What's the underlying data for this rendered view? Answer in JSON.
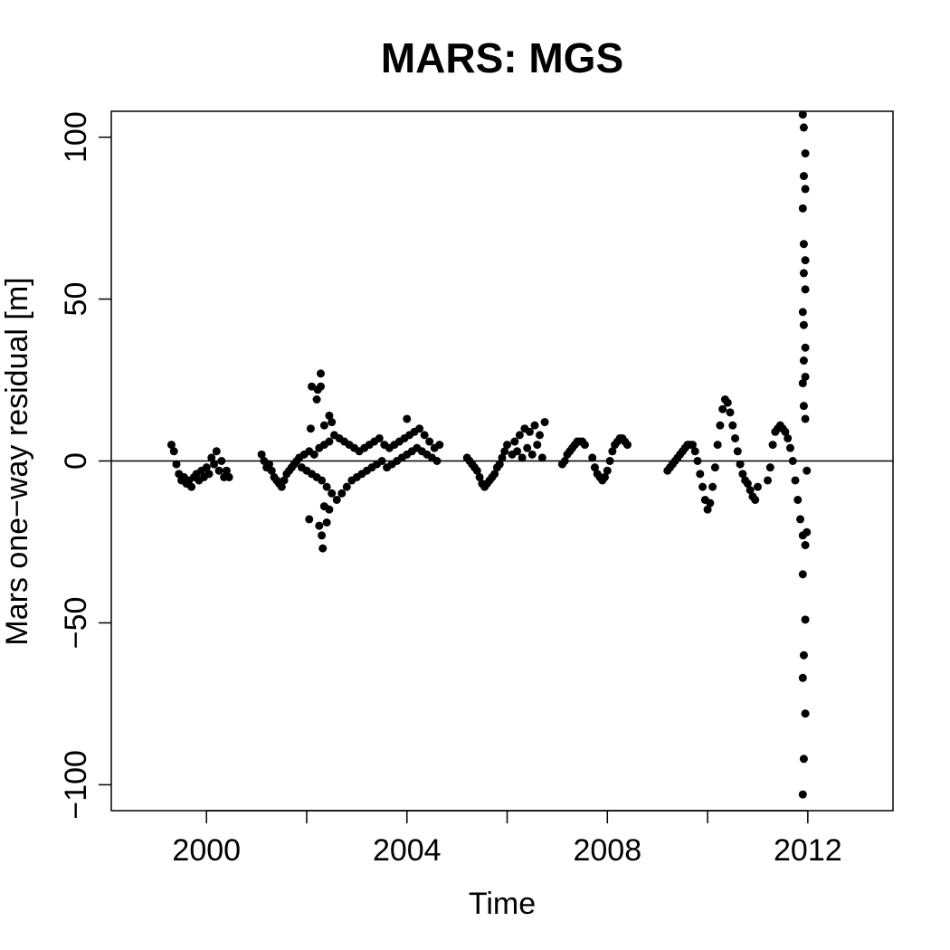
{
  "chart_data": {
    "type": "scatter",
    "title": "MARS: MGS",
    "xlabel": "Time",
    "ylabel": "Mars one−way residual [m]",
    "xlim": [
      1998.1,
      2013.7
    ],
    "ylim": [
      -108,
      108
    ],
    "xticks": [
      2000,
      2002,
      2004,
      2006,
      2008,
      2010,
      2012
    ],
    "xtick_labels": [
      "2000",
      "",
      "2004",
      "",
      "2008",
      "",
      "2012"
    ],
    "yticks": [
      -100,
      -50,
      0,
      50,
      100
    ],
    "ytick_labels": [
      "−100",
      "−50",
      "0",
      "50",
      "100"
    ],
    "reference_line_y": 0,
    "grid": false,
    "marker_color": "#000000",
    "series": [
      {
        "points": [
          [
            1999.3,
            5
          ],
          [
            1999.35,
            3
          ],
          [
            1999.4,
            -1
          ],
          [
            1999.45,
            -4
          ],
          [
            1999.5,
            -6
          ],
          [
            1999.55,
            -5
          ],
          [
            1999.6,
            -7
          ],
          [
            1999.65,
            -6
          ],
          [
            1999.7,
            -8
          ],
          [
            1999.75,
            -5
          ],
          [
            1999.8,
            -4
          ],
          [
            1999.85,
            -6
          ],
          [
            1999.9,
            -3
          ],
          [
            1999.95,
            -5
          ],
          [
            2000.0,
            -2
          ],
          [
            2000.05,
            -4
          ],
          [
            2000.1,
            1
          ],
          [
            2000.15,
            -1
          ],
          [
            2000.2,
            3
          ],
          [
            2000.25,
            -3
          ],
          [
            2000.3,
            0
          ],
          [
            2000.35,
            -5
          ],
          [
            2000.4,
            -3
          ],
          [
            2000.45,
            -5
          ],
          [
            2001.1,
            2
          ],
          [
            2001.15,
            0
          ],
          [
            2001.2,
            -2
          ],
          [
            2001.25,
            -1
          ],
          [
            2001.3,
            -3
          ],
          [
            2001.35,
            -5
          ],
          [
            2001.4,
            -6
          ],
          [
            2001.45,
            -7
          ],
          [
            2001.5,
            -8
          ],
          [
            2001.55,
            -6
          ],
          [
            2001.6,
            -4
          ],
          [
            2001.65,
            -3
          ],
          [
            2001.7,
            -2
          ],
          [
            2001.75,
            -1
          ],
          [
            2001.8,
            0
          ],
          [
            2001.85,
            1
          ],
          [
            2001.9,
            -2
          ],
          [
            2001.95,
            2
          ],
          [
            2002.0,
            -3
          ],
          [
            2002.05,
            3
          ],
          [
            2002.1,
            -4
          ],
          [
            2002.15,
            2
          ],
          [
            2002.2,
            -5
          ],
          [
            2002.25,
            4
          ],
          [
            2002.3,
            -6
          ],
          [
            2002.35,
            5
          ],
          [
            2002.4,
            -8
          ],
          [
            2002.45,
            6
          ],
          [
            2002.5,
            -10
          ],
          [
            2002.55,
            8
          ],
          [
            2002.6,
            -12
          ],
          [
            2002.65,
            7
          ],
          [
            2002.7,
            -10
          ],
          [
            2002.75,
            6
          ],
          [
            2002.8,
            -8
          ],
          [
            2002.85,
            5
          ],
          [
            2002.9,
            -6
          ],
          [
            2002.95,
            4
          ],
          [
            2003.0,
            -5
          ],
          [
            2003.05,
            3
          ],
          [
            2003.1,
            -4
          ],
          [
            2003.15,
            4
          ],
          [
            2003.2,
            -3
          ],
          [
            2003.25,
            5
          ],
          [
            2003.3,
            -2
          ],
          [
            2003.35,
            6
          ],
          [
            2003.4,
            -1
          ],
          [
            2003.45,
            7
          ],
          [
            2003.5,
            0
          ],
          [
            2003.55,
            5
          ],
          [
            2003.6,
            -2
          ],
          [
            2003.65,
            4
          ],
          [
            2003.7,
            -1
          ],
          [
            2003.75,
            5
          ],
          [
            2003.8,
            0
          ],
          [
            2003.85,
            6
          ],
          [
            2003.9,
            1
          ],
          [
            2003.95,
            7
          ],
          [
            2004.0,
            2
          ],
          [
            2004.05,
            8
          ],
          [
            2004.1,
            3
          ],
          [
            2004.15,
            9
          ],
          [
            2004.2,
            4
          ],
          [
            2004.25,
            10
          ],
          [
            2004.3,
            3
          ],
          [
            2004.35,
            8
          ],
          [
            2004.4,
            2
          ],
          [
            2004.45,
            6
          ],
          [
            2004.5,
            1
          ],
          [
            2004.55,
            4
          ],
          [
            2004.6,
            0
          ],
          [
            2004.65,
            5
          ],
          [
            2002.1,
            23
          ],
          [
            2002.2,
            19
          ],
          [
            2002.22,
            22
          ],
          [
            2002.28,
            23
          ],
          [
            2002.28,
            27
          ],
          [
            2002.08,
            10
          ],
          [
            2002.35,
            11
          ],
          [
            2002.45,
            14
          ],
          [
            2002.5,
            12
          ],
          [
            2004.0,
            13
          ],
          [
            2002.05,
            -18
          ],
          [
            2002.25,
            -20
          ],
          [
            2002.3,
            -23
          ],
          [
            2002.32,
            -27
          ],
          [
            2002.4,
            -19
          ],
          [
            2002.45,
            -15
          ],
          [
            2002.35,
            -14
          ],
          [
            2005.2,
            1
          ],
          [
            2005.25,
            0
          ],
          [
            2005.3,
            -1
          ],
          [
            2005.35,
            -2
          ],
          [
            2005.4,
            -3
          ],
          [
            2005.45,
            -5
          ],
          [
            2005.5,
            -7
          ],
          [
            2005.55,
            -8
          ],
          [
            2005.6,
            -7
          ],
          [
            2005.65,
            -6
          ],
          [
            2005.7,
            -5
          ],
          [
            2005.75,
            -4
          ],
          [
            2005.8,
            -2
          ],
          [
            2005.85,
            -1
          ],
          [
            2005.9,
            1
          ],
          [
            2005.95,
            3
          ],
          [
            2006.0,
            5
          ],
          [
            2006.1,
            2
          ],
          [
            2006.15,
            6
          ],
          [
            2006.2,
            3
          ],
          [
            2006.25,
            8
          ],
          [
            2006.3,
            1
          ],
          [
            2006.35,
            10
          ],
          [
            2006.4,
            4
          ],
          [
            2006.45,
            9
          ],
          [
            2006.5,
            2
          ],
          [
            2006.55,
            11
          ],
          [
            2006.6,
            5
          ],
          [
            2006.65,
            8
          ],
          [
            2006.7,
            1
          ],
          [
            2006.75,
            12
          ],
          [
            2007.1,
            -1
          ],
          [
            2007.15,
            0
          ],
          [
            2007.2,
            2
          ],
          [
            2007.25,
            3
          ],
          [
            2007.3,
            4
          ],
          [
            2007.35,
            5
          ],
          [
            2007.4,
            6
          ],
          [
            2007.45,
            6
          ],
          [
            2007.5,
            6
          ],
          [
            2007.55,
            5
          ],
          [
            2007.7,
            1
          ],
          [
            2007.75,
            -2
          ],
          [
            2007.8,
            -4
          ],
          [
            2007.85,
            -5
          ],
          [
            2007.9,
            -6
          ],
          [
            2007.95,
            -5
          ],
          [
            2008.0,
            -3
          ],
          [
            2008.05,
            0
          ],
          [
            2008.1,
            3
          ],
          [
            2008.15,
            5
          ],
          [
            2008.2,
            6
          ],
          [
            2008.25,
            7
          ],
          [
            2008.3,
            7
          ],
          [
            2008.35,
            6
          ],
          [
            2008.4,
            5
          ],
          [
            2009.2,
            -3
          ],
          [
            2009.25,
            -2
          ],
          [
            2009.3,
            -1
          ],
          [
            2009.35,
            0
          ],
          [
            2009.4,
            1
          ],
          [
            2009.45,
            2
          ],
          [
            2009.5,
            3
          ],
          [
            2009.55,
            4
          ],
          [
            2009.6,
            5
          ],
          [
            2009.65,
            5
          ],
          [
            2009.7,
            5
          ],
          [
            2009.75,
            3
          ],
          [
            2009.8,
            0
          ],
          [
            2009.85,
            -4
          ],
          [
            2009.9,
            -8
          ],
          [
            2009.95,
            -12
          ],
          [
            2010.0,
            -15
          ],
          [
            2010.05,
            -13
          ],
          [
            2010.1,
            -8
          ],
          [
            2010.15,
            -2
          ],
          [
            2010.2,
            5
          ],
          [
            2010.25,
            11
          ],
          [
            2010.3,
            16
          ],
          [
            2010.35,
            19
          ],
          [
            2010.4,
            18
          ],
          [
            2010.45,
            15
          ],
          [
            2010.5,
            11
          ],
          [
            2010.55,
            7
          ],
          [
            2010.6,
            3
          ],
          [
            2010.65,
            -1
          ],
          [
            2010.7,
            -4
          ],
          [
            2010.75,
            -6
          ],
          [
            2010.8,
            -7
          ],
          [
            2010.85,
            -9
          ],
          [
            2010.9,
            -11
          ],
          [
            2010.95,
            -12
          ],
          [
            2011.0,
            -8
          ],
          [
            2011.2,
            -6
          ],
          [
            2011.25,
            -2
          ],
          [
            2011.3,
            5
          ],
          [
            2011.35,
            9
          ],
          [
            2011.4,
            10
          ],
          [
            2011.45,
            11
          ],
          [
            2011.5,
            10
          ],
          [
            2011.55,
            9
          ],
          [
            2011.6,
            7
          ],
          [
            2011.65,
            4
          ],
          [
            2011.7,
            0
          ],
          [
            2011.75,
            -6
          ],
          [
            2011.8,
            -12
          ],
          [
            2011.85,
            -18
          ],
          [
            2011.9,
            -23
          ],
          [
            2011.95,
            -26
          ],
          [
            2011.98,
            -22
          ],
          [
            2011.9,
            107
          ],
          [
            2011.92,
            103
          ],
          [
            2011.95,
            95
          ],
          [
            2011.92,
            88
          ],
          [
            2011.95,
            84
          ],
          [
            2011.9,
            78
          ],
          [
            2011.92,
            67
          ],
          [
            2011.95,
            62
          ],
          [
            2011.92,
            58
          ],
          [
            2011.95,
            53
          ],
          [
            2011.9,
            46
          ],
          [
            2011.92,
            42
          ],
          [
            2011.95,
            35
          ],
          [
            2011.92,
            31
          ],
          [
            2011.95,
            26
          ],
          [
            2011.9,
            24
          ],
          [
            2011.92,
            17
          ],
          [
            2011.95,
            13
          ],
          [
            2011.98,
            -3
          ],
          [
            2011.9,
            -35
          ],
          [
            2011.95,
            -49
          ],
          [
            2011.92,
            -60
          ],
          [
            2011.9,
            -67
          ],
          [
            2011.95,
            -78
          ],
          [
            2011.92,
            -92
          ],
          [
            2011.9,
            -103
          ]
        ]
      }
    ]
  }
}
